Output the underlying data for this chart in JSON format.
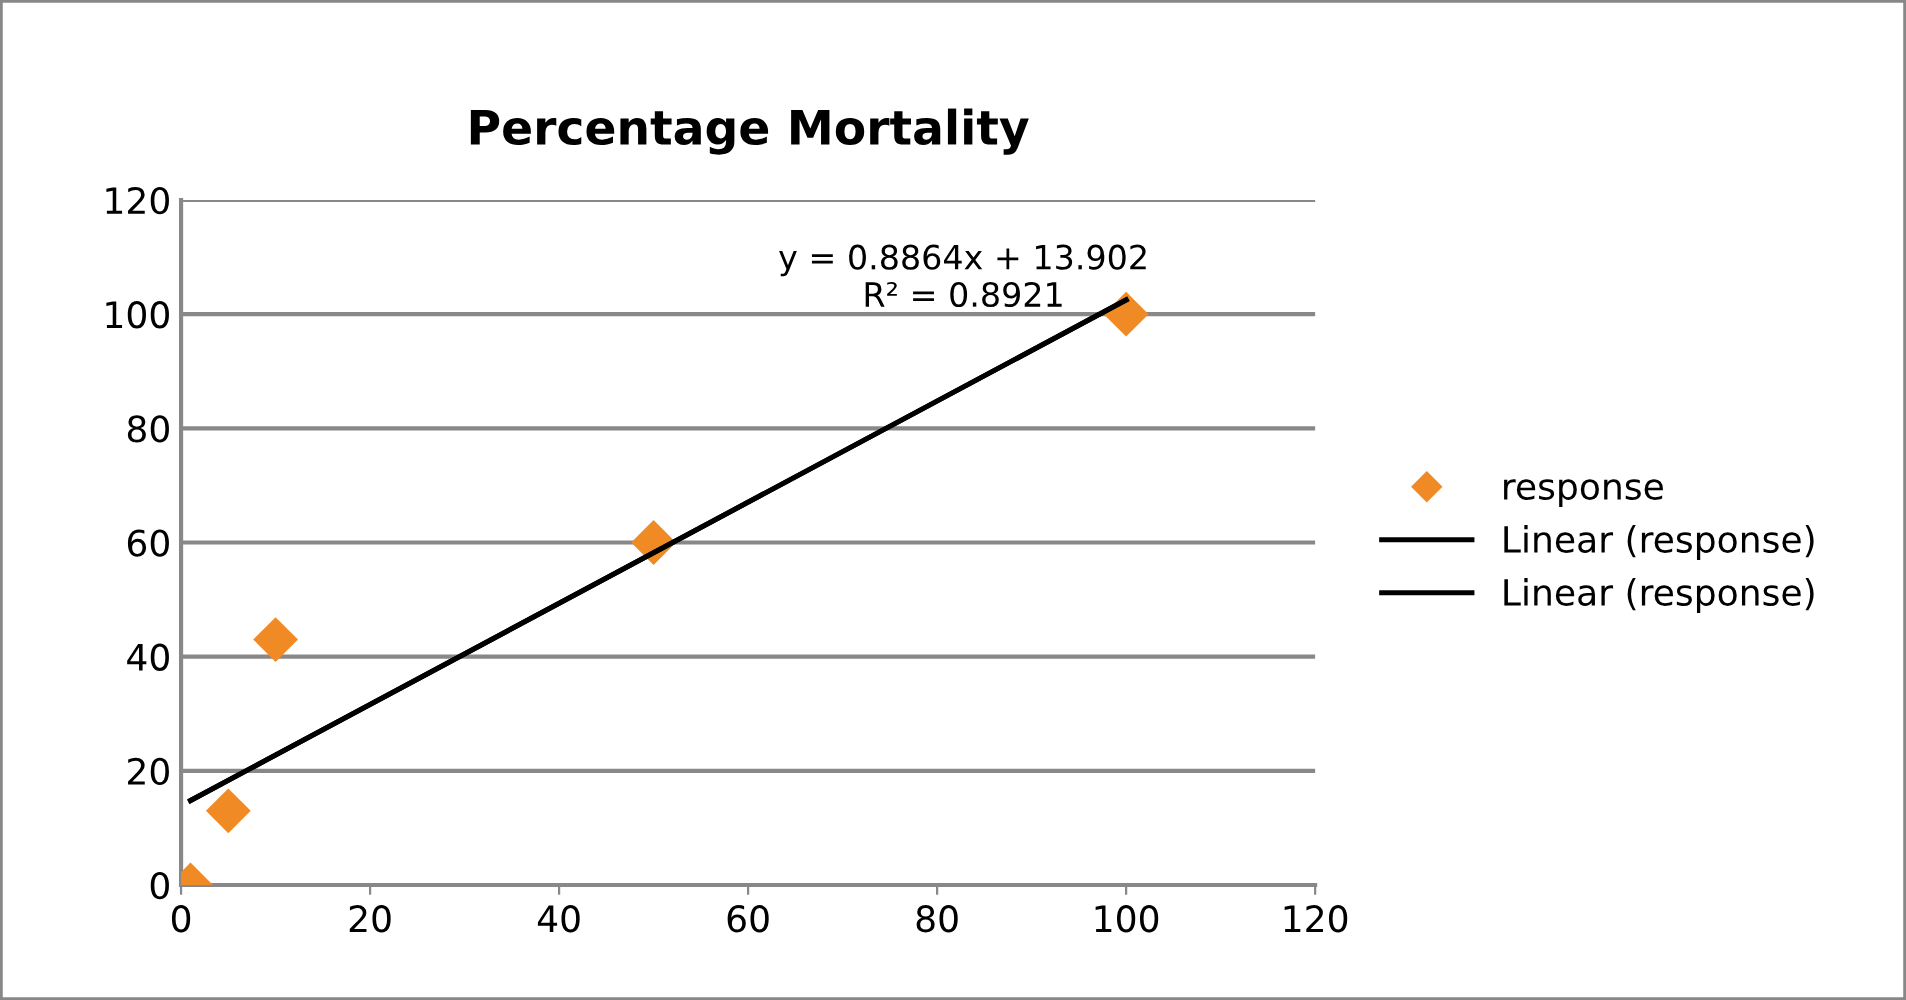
{
  "chart_data": {
    "type": "scatter",
    "title": "Percentage Mortality",
    "series": [
      {
        "name": "response",
        "color": "#f08a24",
        "marker": "diamond",
        "x": [
          1,
          5,
          10,
          50,
          100
        ],
        "values": [
          0,
          13,
          43,
          60,
          100
        ]
      },
      {
        "name": "Linear (response)",
        "type": "line",
        "color": "#000000",
        "marker": "none",
        "x": [
          1,
          100
        ],
        "values": [
          14.8,
          102.5
        ]
      },
      {
        "name": "Linear (response)",
        "type": "line",
        "color": "#000000",
        "marker": "none",
        "x": [
          1,
          100
        ],
        "values": [
          14.8,
          102.5
        ]
      }
    ],
    "annotations": [
      "y = 0.8864x + 13.902\nR² = 0.8921"
    ],
    "xlim": [
      0,
      120
    ],
    "xticks": [
      0,
      20,
      40,
      60,
      80,
      100,
      120
    ],
    "ylim": [
      0,
      120
    ],
    "yticks": [
      0,
      20,
      40,
      60,
      80,
      100,
      120
    ],
    "grid": "y",
    "legend": "right"
  }
}
